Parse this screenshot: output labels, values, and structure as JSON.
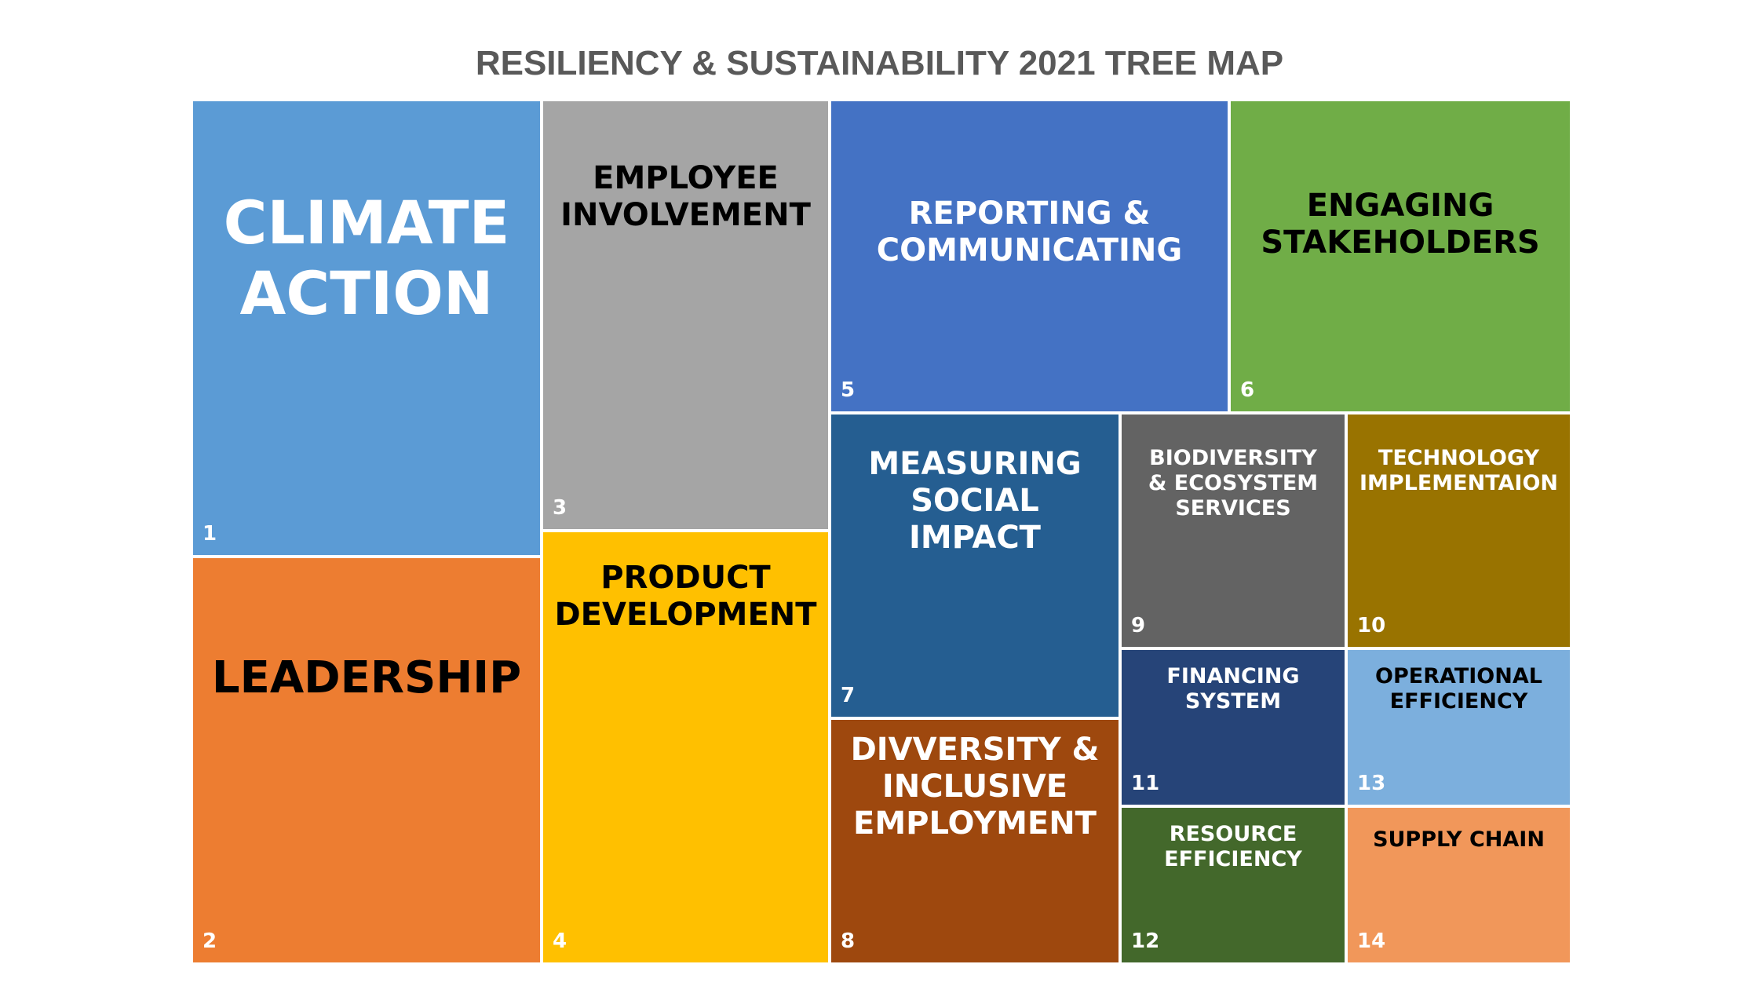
{
  "chart_data": {
    "type": "treemap",
    "title": "RESILIENCY & SUSTAINABILITY 2021 TREE MAP",
    "items": [
      {
        "rank": "1",
        "label": "CLIMATE\nACTION",
        "color": "#5B9BD5",
        "text_color": "#FFFFFF"
      },
      {
        "rank": "2",
        "label": "LEADERSHIP",
        "color": "#ED7D31",
        "text_color": "#000000"
      },
      {
        "rank": "3",
        "label": "EMPLOYEE\nINVOLVEMENT",
        "color": "#A5A5A5",
        "text_color": "#000000"
      },
      {
        "rank": "4",
        "label": "PRODUCT\nDEVELOPMENT",
        "color": "#FFC000",
        "text_color": "#000000"
      },
      {
        "rank": "5",
        "label": "REPORTING &\nCOMMUNICATING",
        "color": "#4472C4",
        "text_color": "#FFFFFF"
      },
      {
        "rank": "6",
        "label": "ENGAGING\nSTAKEHOLDERS",
        "color": "#70AD47",
        "text_color": "#000000"
      },
      {
        "rank": "7",
        "label": "MEASURING\nSOCIAL\nIMPACT",
        "color": "#255E91",
        "text_color": "#FFFFFF"
      },
      {
        "rank": "8",
        "label": "DIVVERSITY &\nINCLUSIVE\nEMPLOYMENT",
        "color": "#9E480E",
        "text_color": "#FFFFFF"
      },
      {
        "rank": "9",
        "label": "BIODIVERSITY\n& ECOSYSTEM\nSERVICES",
        "color": "#636363",
        "text_color": "#FFFFFF"
      },
      {
        "rank": "10",
        "label": "TECHNOLOGY\nIMPLEMENTAION",
        "color": "#997300",
        "text_color": "#FFFFFF"
      },
      {
        "rank": "11",
        "label": "FINANCING\nSYSTEM",
        "color": "#264478",
        "text_color": "#FFFFFF"
      },
      {
        "rank": "12",
        "label": "RESOURCE\nEFFICIENCY",
        "color": "#43682B",
        "text_color": "#FFFFFF"
      },
      {
        "rank": "13",
        "label": "OPERATIONAL\nEFFICIENCY",
        "color": "#7CAFDD",
        "text_color": "#000000"
      },
      {
        "rank": "14",
        "label": "SUPPLY CHAIN",
        "color": "#F1975A",
        "text_color": "#000000"
      }
    ]
  }
}
